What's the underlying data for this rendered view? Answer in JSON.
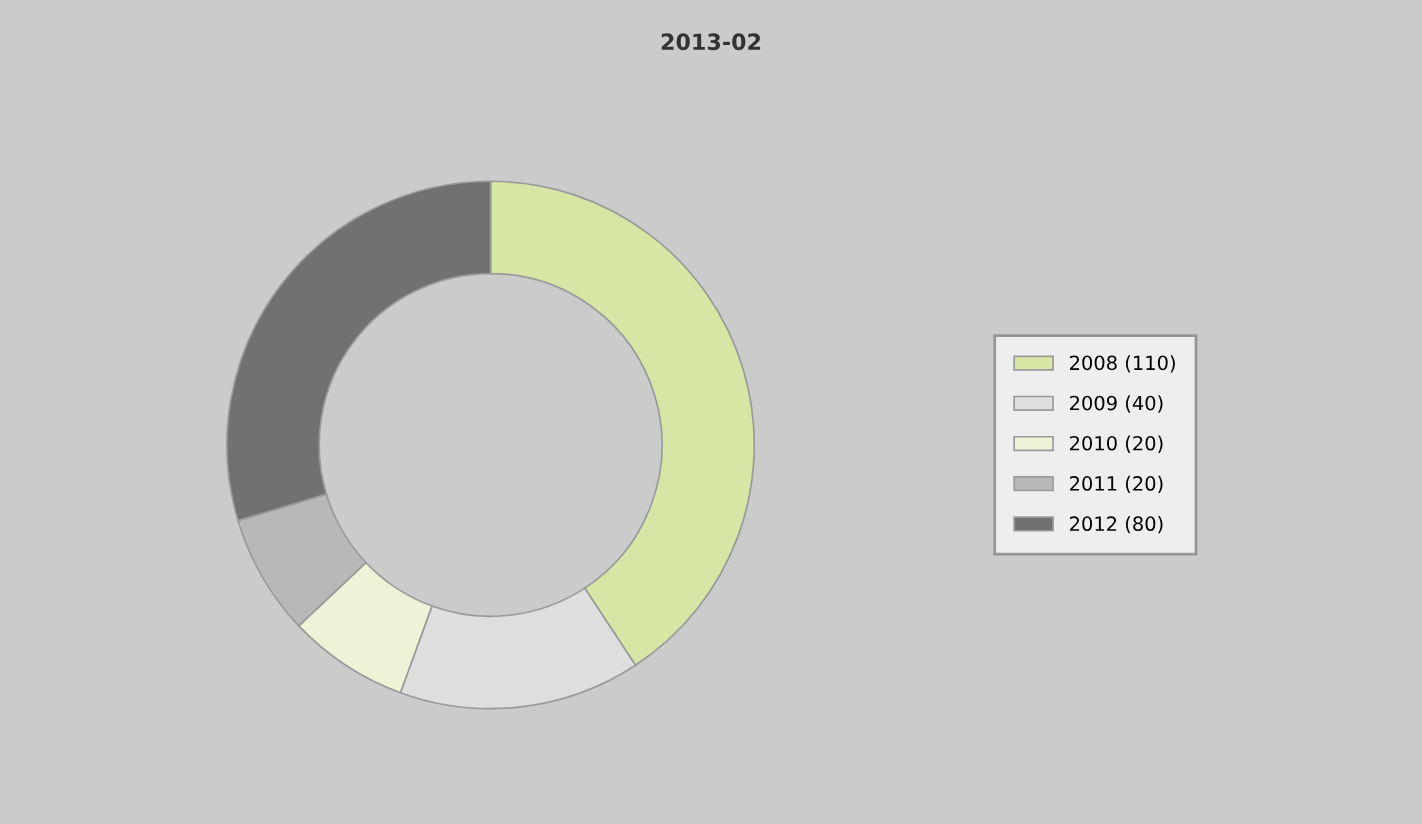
{
  "chart_data": {
    "type": "donut",
    "title": "2013-02",
    "categories": [
      "2008 (110)",
      "2009 (40)",
      "2010 (20)",
      "2011 (20)",
      "2012 (80)"
    ],
    "values": [
      110,
      40,
      20,
      20,
      80
    ],
    "colors": [
      "#d6e6a4",
      "#dedede",
      "#ecf3d6",
      "#b8b8b8",
      "#717171"
    ],
    "legend": "right"
  }
}
